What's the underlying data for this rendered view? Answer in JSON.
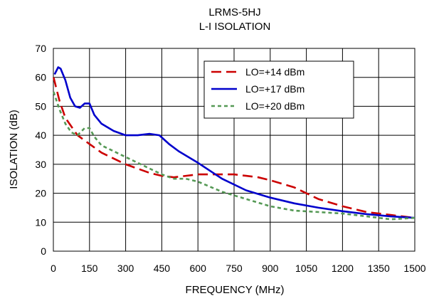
{
  "chart_data": {
    "type": "line",
    "title": "LRMS-5HJ",
    "subtitle": "L-I ISOLATION",
    "xlabel": "FREQUENCY (MHz)",
    "ylabel": "ISOLATION (dB)",
    "xlim": [
      0,
      1500
    ],
    "ylim": [
      0,
      70
    ],
    "xticks": [
      0,
      150,
      300,
      450,
      600,
      750,
      900,
      1050,
      1200,
      1350,
      1500
    ],
    "yticks": [
      0,
      10,
      20,
      30,
      40,
      50,
      60,
      70
    ],
    "grid": true,
    "legend_position": "top-right",
    "series": [
      {
        "name": "LO=+14 dBm",
        "color": "#cc0000",
        "dash": "dashed",
        "x": [
          1,
          25,
          50,
          100,
          150,
          200,
          300,
          400,
          450,
          500,
          600,
          700,
          750,
          800,
          850,
          900,
          1000,
          1050,
          1100,
          1200,
          1300,
          1400,
          1500
        ],
        "y": [
          60,
          52,
          46,
          40,
          37,
          34,
          30,
          27,
          26,
          25.5,
          26.5,
          26.5,
          26.5,
          26,
          25.5,
          24.5,
          22,
          20,
          18,
          15.5,
          13.5,
          12.5,
          11.5
        ]
      },
      {
        "name": "LO=+17 dBm",
        "color": "#0000cc",
        "dash": "solid",
        "x": [
          5,
          20,
          30,
          50,
          70,
          90,
          110,
          130,
          150,
          170,
          200,
          250,
          300,
          350,
          400,
          440,
          480,
          520,
          600,
          700,
          800,
          900,
          1000,
          1100,
          1200,
          1300,
          1400,
          1500
        ],
        "y": [
          61,
          63.5,
          63,
          59,
          53,
          50,
          49.5,
          51,
          51,
          47,
          44,
          41.5,
          40,
          40,
          40.5,
          40,
          37,
          34.5,
          30.5,
          25,
          21,
          18.5,
          16.5,
          15,
          13.8,
          12.8,
          12,
          11.5
        ]
      },
      {
        "name": "LO=+20 dBm",
        "color": "#559955",
        "dash": "dotted",
        "x": [
          1,
          25,
          50,
          75,
          100,
          130,
          150,
          170,
          200,
          250,
          300,
          350,
          400,
          450,
          500,
          550,
          600,
          700,
          800,
          900,
          1000,
          1100,
          1200,
          1300,
          1400,
          1500
        ],
        "y": [
          55,
          49,
          44,
          41,
          40,
          42.5,
          42.5,
          39.5,
          36.5,
          34.5,
          32.5,
          30.5,
          28.5,
          26.5,
          25,
          25,
          24,
          20.5,
          18,
          15.5,
          14,
          13.5,
          13,
          12,
          11,
          11.5
        ]
      }
    ]
  }
}
